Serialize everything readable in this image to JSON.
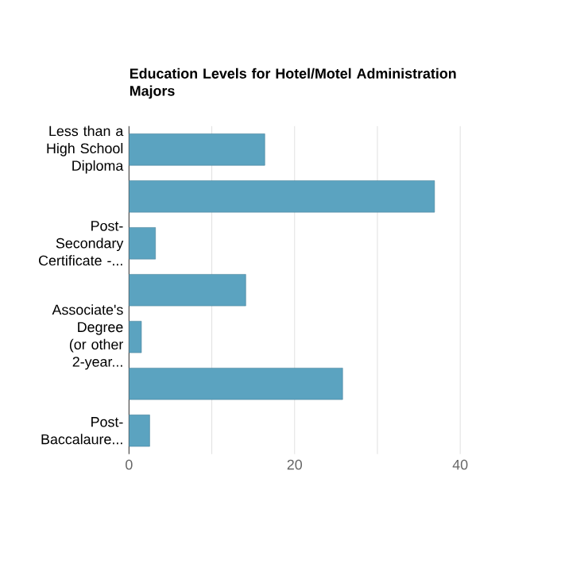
{
  "chart_data": {
    "type": "bar",
    "orientation": "horizontal",
    "title": "Education Levels for Hotel/Motel Administration Majors",
    "categories": [
      "Less than a High School Diploma",
      null,
      "Post-Secondary Certificate -...",
      null,
      "Associate's Degree (or other 2-year...",
      null,
      "Post-Baccalaure..."
    ],
    "values": [
      16.4,
      36.9,
      3.2,
      14.1,
      1.5,
      25.8,
      2.5
    ],
    "color": "#5ba3c0",
    "xlim": [
      0,
      40
    ],
    "xticks": [
      0,
      {
        "value": 10,
        "label": null
      },
      20,
      {
        "value": 30,
        "label": null
      },
      40
    ],
    "grid": "x"
  }
}
